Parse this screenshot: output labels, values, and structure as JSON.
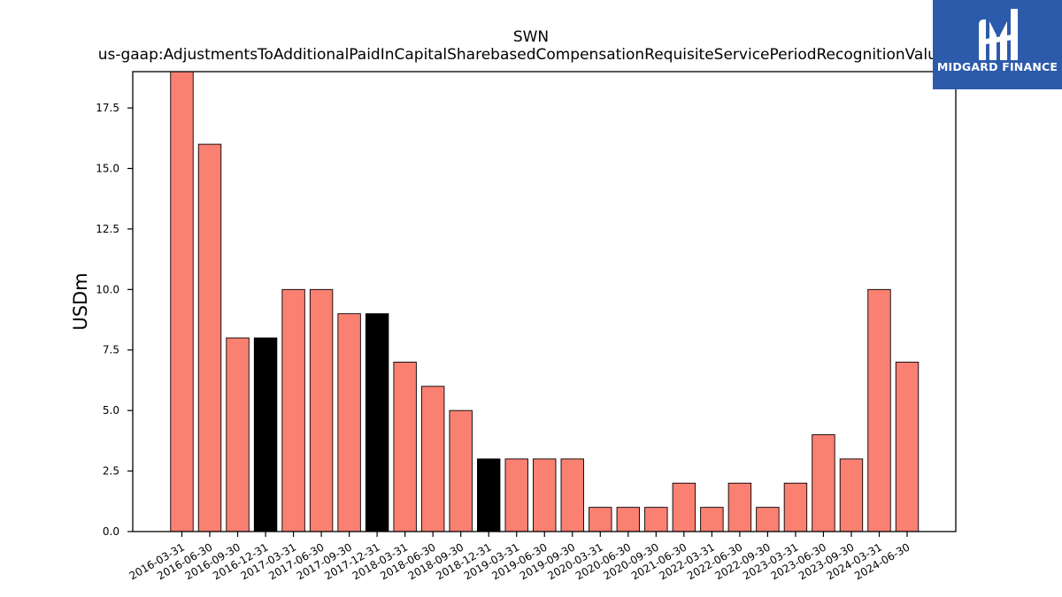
{
  "chart_data": {
    "type": "bar",
    "title": "SWN",
    "subtitle": "us-gaap:AdjustmentsToAdditionalPaidInCapitalSharebasedCompensationRequisiteServicePeriodRecognitionValue",
    "xlabel": "",
    "ylabel": "USDm",
    "ylim": [
      0,
      19
    ],
    "yticks": [
      "0.0",
      "2.5",
      "5.0",
      "7.5",
      "10.0",
      "12.5",
      "15.0",
      "17.5"
    ],
    "grid": false,
    "categories": [
      "2016-03-31",
      "2016-06-30",
      "2016-09-30",
      "2016-12-31",
      "2017-03-31",
      "2017-06-30",
      "2017-09-30",
      "2017-12-31",
      "2018-03-31",
      "2018-06-30",
      "2018-09-30",
      "2018-12-31",
      "2019-03-31",
      "2019-06-30",
      "2019-09-30",
      "2020-03-31",
      "2020-06-30",
      "2020-09-30",
      "2021-06-30",
      "2022-03-31",
      "2022-06-30",
      "2022-09-30",
      "2023-03-31",
      "2023-06-30",
      "2023-09-30",
      "2024-03-31",
      "2024-06-30"
    ],
    "values": [
      19,
      16,
      8,
      8,
      10,
      10,
      9,
      9,
      7,
      6,
      5,
      3,
      3,
      3,
      3,
      1,
      1,
      1,
      2,
      1,
      2,
      1,
      2,
      4,
      3,
      10,
      7
    ],
    "highlighted": [
      false,
      false,
      false,
      true,
      false,
      false,
      false,
      true,
      false,
      false,
      false,
      true,
      false,
      false,
      false,
      false,
      false,
      false,
      false,
      false,
      false,
      false,
      false,
      false,
      false,
      false,
      false
    ],
    "colors": {
      "bar": "#fa8072",
      "highlight": "#000000",
      "edge": "#000000"
    }
  },
  "logo": {
    "text": "MIDGARD FINANCE",
    "background": "#2d5bab"
  }
}
